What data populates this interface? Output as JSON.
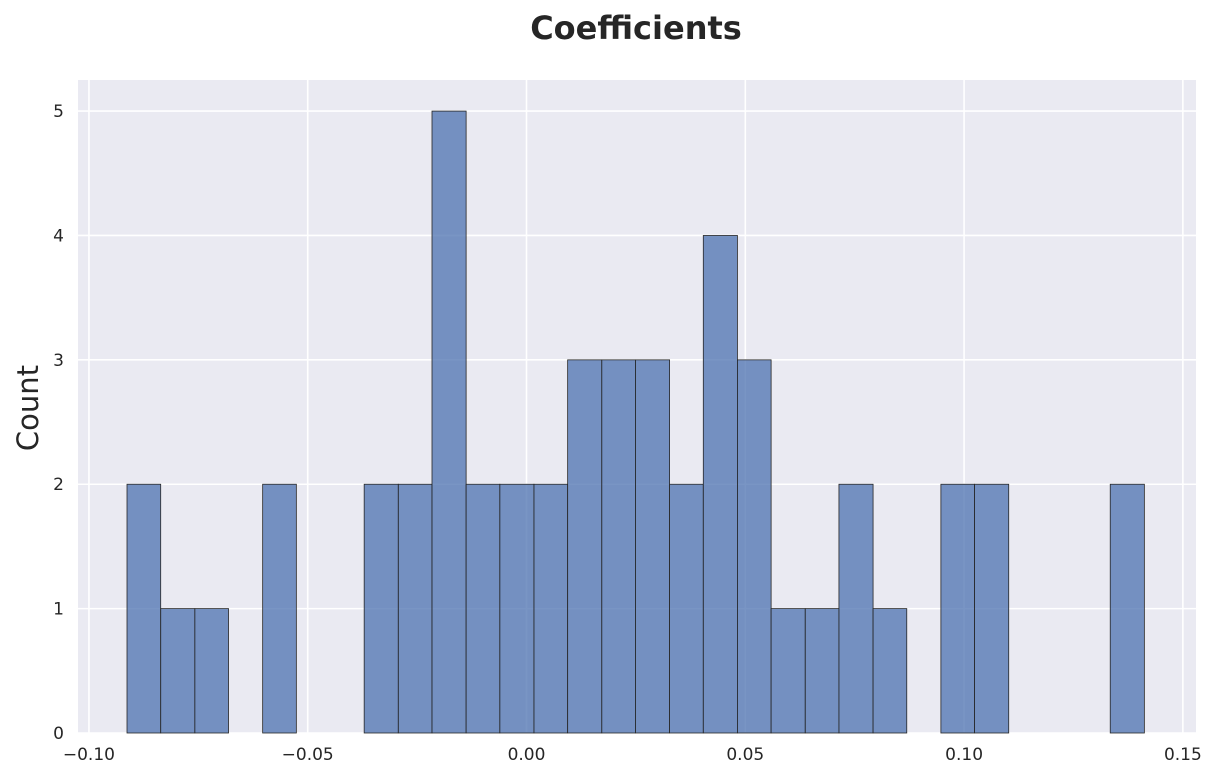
{
  "chart_data": {
    "type": "bar",
    "title": "Coefficients",
    "xlabel": "",
    "ylabel": "Count",
    "xlim": [
      -0.1025,
      0.153
    ],
    "ylim": [
      0,
      5.25
    ],
    "x_ticks": [
      -0.1,
      -0.05,
      0.0,
      0.05,
      0.1,
      0.15
    ],
    "x_tick_labels": [
      "−0.10",
      "−0.05",
      "0.00",
      "0.05",
      "0.10",
      "0.15"
    ],
    "y_ticks": [
      0,
      1,
      2,
      3,
      4,
      5
    ],
    "y_tick_labels": [
      "0",
      "1",
      "2",
      "3",
      "4",
      "5"
    ],
    "grid": true,
    "legend": "none",
    "bins": [
      {
        "x0": -0.0913,
        "x1": -0.0836,
        "count": 2
      },
      {
        "x0": -0.0836,
        "x1": -0.0758,
        "count": 1
      },
      {
        "x0": -0.0758,
        "x1": -0.0681,
        "count": 1
      },
      {
        "x0": -0.0681,
        "x1": -0.0603,
        "count": 0
      },
      {
        "x0": -0.0603,
        "x1": -0.0526,
        "count": 2
      },
      {
        "x0": -0.0526,
        "x1": -0.0448,
        "count": 0
      },
      {
        "x0": -0.0448,
        "x1": -0.0371,
        "count": 0
      },
      {
        "x0": -0.0371,
        "x1": -0.0293,
        "count": 2
      },
      {
        "x0": -0.0293,
        "x1": -0.0216,
        "count": 2
      },
      {
        "x0": -0.0216,
        "x1": -0.0138,
        "count": 5
      },
      {
        "x0": -0.0138,
        "x1": -0.0061,
        "count": 2
      },
      {
        "x0": -0.0061,
        "x1": 0.0017,
        "count": 2
      },
      {
        "x0": 0.0017,
        "x1": 0.0094,
        "count": 2
      },
      {
        "x0": 0.0094,
        "x1": 0.0172,
        "count": 3
      },
      {
        "x0": 0.0172,
        "x1": 0.0249,
        "count": 3
      },
      {
        "x0": 0.0249,
        "x1": 0.0327,
        "count": 3
      },
      {
        "x0": 0.0327,
        "x1": 0.0404,
        "count": 2
      },
      {
        "x0": 0.0404,
        "x1": 0.0482,
        "count": 4
      },
      {
        "x0": 0.0482,
        "x1": 0.0559,
        "count": 3
      },
      {
        "x0": 0.0559,
        "x1": 0.0637,
        "count": 1
      },
      {
        "x0": 0.0637,
        "x1": 0.0714,
        "count": 1
      },
      {
        "x0": 0.0714,
        "x1": 0.0792,
        "count": 2
      },
      {
        "x0": 0.0792,
        "x1": 0.0869,
        "count": 1
      },
      {
        "x0": 0.0869,
        "x1": 0.0947,
        "count": 0
      },
      {
        "x0": 0.0947,
        "x1": 0.1024,
        "count": 2
      },
      {
        "x0": 0.1024,
        "x1": 0.1102,
        "count": 2
      },
      {
        "x0": 0.1102,
        "x1": 0.1179,
        "count": 0
      },
      {
        "x0": 0.1179,
        "x1": 0.1257,
        "count": 0
      },
      {
        "x0": 0.1257,
        "x1": 0.1334,
        "count": 0
      },
      {
        "x0": 0.1334,
        "x1": 0.1412,
        "count": 2
      }
    ],
    "colors": {
      "plot_background": "#eaeaf2",
      "bar_fill": "#4c72b0",
      "bar_edge": "#262626",
      "grid": "#ffffff",
      "text": "#262626"
    }
  }
}
